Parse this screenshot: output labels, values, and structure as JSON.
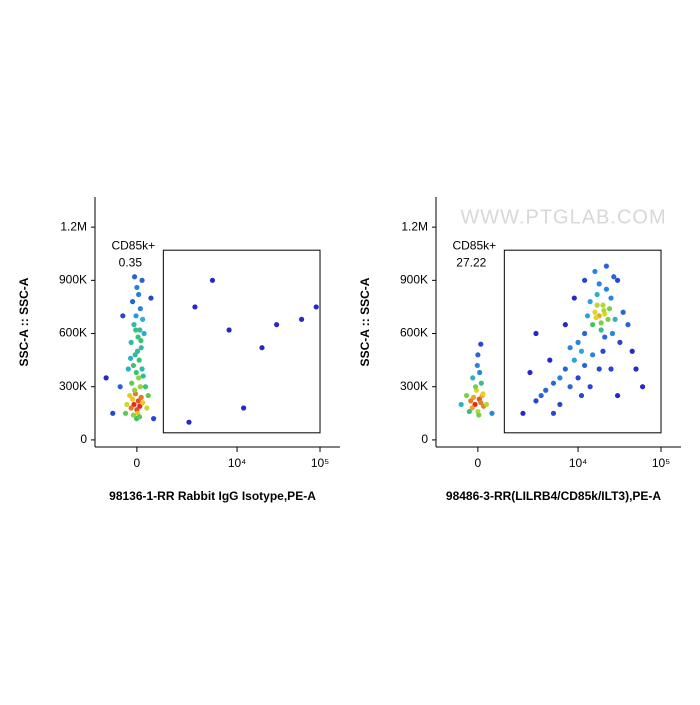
{
  "chart_data": [
    {
      "type": "scatter",
      "xscale": "biexponential",
      "xlabel": "98136-1-RR Rabbit IgG Isotype,PE-A",
      "ylabel": "SSC-A :: SSC-A",
      "xlim": [
        -1800,
        174000
      ],
      "ylim": [
        -40000,
        1370000
      ],
      "xticks": [
        0,
        {
          "value": 10000,
          "label": "10⁴"
        },
        {
          "value": 100000,
          "label": "10⁵"
        }
      ],
      "yticks": [
        0,
        {
          "value": 300000,
          "label": "300K"
        },
        {
          "value": 600000,
          "label": "600K"
        },
        {
          "value": 900000,
          "label": "900K"
        },
        {
          "value": 1200000,
          "label": "1.2M"
        }
      ],
      "gate": {
        "label": "CD85k+",
        "percent": 0.35,
        "x": [
          1000,
          100000
        ],
        "y": [
          40000,
          1070000
        ]
      },
      "x": [
        -100,
        50,
        -200,
        150,
        0,
        -50,
        100,
        -150,
        200,
        -250,
        30,
        -80,
        120,
        -180,
        60,
        -20,
        180,
        -120,
        80,
        -60,
        150,
        -200,
        40,
        100,
        -100,
        200,
        -30,
        120,
        -150,
        60,
        0,
        180,
        -80,
        250,
        -300,
        300,
        -350,
        350,
        -400,
        400,
        -10,
        90,
        -120,
        20,
        -40,
        140,
        -220,
        220,
        600,
        -600,
        500,
        -500,
        5000,
        3000,
        20000,
        30000,
        8000,
        60000,
        12000,
        90000,
        2500,
        -900,
        -1200
      ],
      "y": [
        200000,
        220000,
        180000,
        240000,
        170000,
        260000,
        190000,
        230000,
        210000,
        250000,
        150000,
        280000,
        300000,
        320000,
        350000,
        380000,
        400000,
        420000,
        450000,
        480000,
        520000,
        550000,
        580000,
        620000,
        650000,
        680000,
        700000,
        740000,
        780000,
        820000,
        860000,
        900000,
        920000,
        600000,
        400000,
        300000,
        200000,
        180000,
        150000,
        250000,
        120000,
        130000,
        140000,
        500000,
        620000,
        560000,
        460000,
        360000,
        120000,
        300000,
        800000,
        700000,
        900000,
        750000,
        520000,
        650000,
        620000,
        680000,
        180000,
        750000,
        100000,
        150000,
        350000
      ]
    },
    {
      "type": "scatter",
      "xscale": "biexponential",
      "xlabel": "98486-3-RR(LILRB4/CD85k/ILT3),PE-A",
      "ylabel": "SSC-A :: SSC-A",
      "watermark": "WWW.PTGLAB.COM",
      "xlim": [
        -1800,
        174000
      ],
      "ylim": [
        -40000,
        1370000
      ],
      "xticks": [
        0,
        {
          "value": 10000,
          "label": "10⁴"
        },
        {
          "value": 100000,
          "label": "10⁵"
        }
      ],
      "yticks": [
        0,
        {
          "value": 300000,
          "label": "300K"
        },
        {
          "value": 600000,
          "label": "600K"
        },
        {
          "value": 900000,
          "label": "900K"
        },
        {
          "value": 1200000,
          "label": "1.2M"
        }
      ],
      "gate": {
        "label": "CD85k+",
        "percent": 27.22,
        "x": [
          1000,
          100000
        ],
        "y": [
          40000,
          1070000
        ]
      },
      "x": [
        -100,
        50,
        -200,
        150,
        0,
        -50,
        100,
        -150,
        200,
        -250,
        30,
        -80,
        120,
        -180,
        60,
        -20,
        180,
        -300,
        300,
        -400,
        0,
        100,
        -600,
        500,
        18000,
        20000,
        15000,
        25000,
        12000,
        22000,
        16000,
        28000,
        10000,
        30000,
        14000,
        19000,
        24000,
        17000,
        21000,
        13000,
        26000,
        11000,
        9000,
        7000,
        6000,
        5000,
        8000,
        4000,
        3500,
        3000,
        12000,
        15000,
        20000,
        35000,
        40000,
        32000,
        8000,
        6000,
        10000,
        14000,
        4500,
        2500,
        3000,
        7000,
        9000,
        12000,
        16000,
        22000,
        18000,
        27000,
        45000,
        50000,
        60000,
        2000,
        5000,
        25000,
        30000,
        11000,
        18000,
        23000,
        19000,
        17000,
        21000,
        16500,
        20500
      ],
      "y": [
        200000,
        230000,
        180000,
        250000,
        160000,
        280000,
        210000,
        240000,
        190000,
        220000,
        140000,
        300000,
        320000,
        350000,
        380000,
        420000,
        260000,
        160000,
        200000,
        250000,
        480000,
        540000,
        200000,
        150000,
        700000,
        760000,
        650000,
        800000,
        600000,
        850000,
        720000,
        680000,
        550000,
        900000,
        780000,
        620000,
        740000,
        820000,
        580000,
        700000,
        600000,
        500000,
        450000,
        400000,
        350000,
        320000,
        520000,
        280000,
        250000,
        220000,
        420000,
        480000,
        500000,
        720000,
        650000,
        550000,
        300000,
        200000,
        350000,
        300000,
        450000,
        380000,
        600000,
        650000,
        800000,
        900000,
        950000,
        980000,
        880000,
        920000,
        500000,
        400000,
        300000,
        150000,
        150000,
        400000,
        250000,
        250000,
        400000,
        680000,
        660000,
        760000,
        710000,
        690000,
        730000
      ]
    }
  ]
}
